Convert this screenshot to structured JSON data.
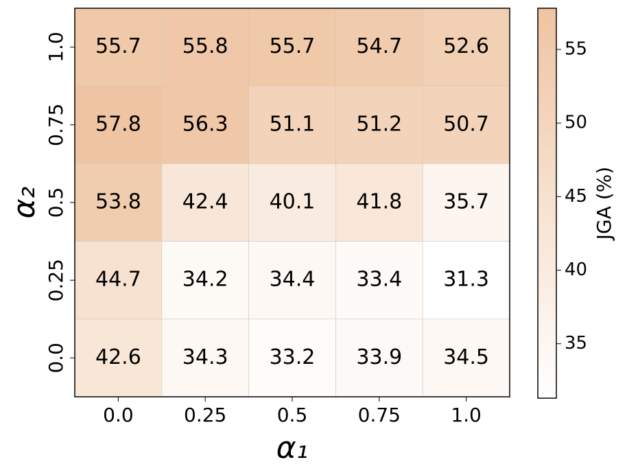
{
  "chart_data": {
    "type": "heatmap",
    "x_label": "α₁",
    "y_label": "α₂",
    "colorbar_label": "JGA (%)",
    "x_categories": [
      "0.0",
      "0.25",
      "0.5",
      "0.75",
      "1.0"
    ],
    "y_categories": [
      "1.0",
      "0.75",
      "0.5",
      "0.25",
      "0.0"
    ],
    "values": [
      [
        55.7,
        55.8,
        55.7,
        54.7,
        52.6
      ],
      [
        57.8,
        56.3,
        51.1,
        51.2,
        50.7
      ],
      [
        53.8,
        42.4,
        40.1,
        41.8,
        35.7
      ],
      [
        44.7,
        34.2,
        34.4,
        33.4,
        31.3
      ],
      [
        42.6,
        34.3,
        33.2,
        33.9,
        34.5
      ]
    ],
    "clim": [
      31.3,
      57.8
    ],
    "cticks": [
      35,
      40,
      45,
      50,
      55
    ],
    "colormap": [
      "#ffffff",
      "#efc4a2"
    ]
  }
}
